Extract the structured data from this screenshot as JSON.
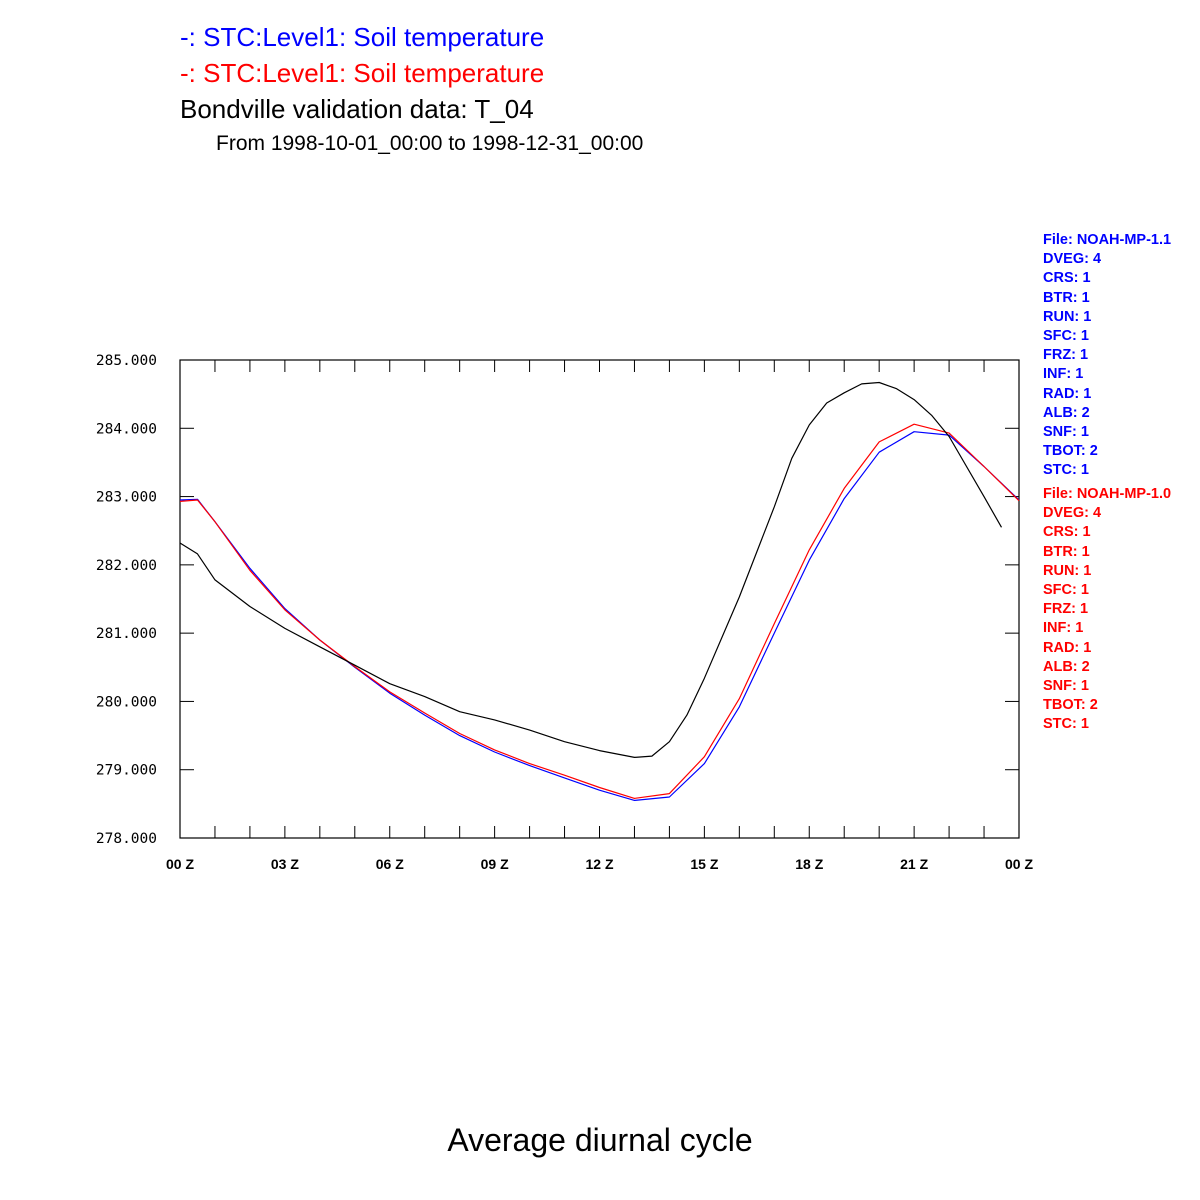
{
  "header": {
    "legend_blue": "-: STC:Level1: Soil temperature",
    "legend_red": "-: STC:Level1: Soil temperature",
    "title": "Bondville validation data: T_04",
    "subtitle": "From 1998-10-01_00:00 to 1998-12-31_00:00",
    "footer": "Average diurnal cycle"
  },
  "file_info": [
    {
      "color": "#0000ff",
      "lines": [
        "File: NOAH-MP-1.1",
        "DVEG: 4",
        "CRS: 1",
        "BTR: 1",
        "RUN: 1",
        "SFC: 1",
        "FRZ: 1",
        "INF: 1",
        "RAD: 1",
        "ALB: 2",
        "SNF: 1",
        "TBOT: 2",
        "STC: 1"
      ]
    },
    {
      "color": "#ff0000",
      "lines": [
        "File: NOAH-MP-1.0",
        "DVEG: 4",
        "CRS: 1",
        "BTR: 1",
        "RUN: 1",
        "SFC: 1",
        "FRZ: 1",
        "INF: 1",
        "RAD: 1",
        "ALB: 2",
        "SNF: 1",
        "TBOT: 2",
        "STC: 1"
      ]
    }
  ],
  "chart_data": {
    "type": "line",
    "title": "Bondville validation data: T_04",
    "xlabel": "Average diurnal cycle",
    "ylabel": "",
    "xlim": [
      0,
      24
    ],
    "ylim": [
      278,
      285
    ],
    "grid": false,
    "x_tick_labels": [
      "00 Z",
      "03 Z",
      "06 Z",
      "09 Z",
      "12 Z",
      "15 Z",
      "18 Z",
      "21 Z",
      "00 Z"
    ],
    "y_tick_labels": [
      "278.000",
      "279.000",
      "280.000",
      "281.000",
      "282.000",
      "283.000",
      "284.000",
      "285.000"
    ],
    "series": [
      {
        "color": "#0000ff",
        "x": [
          0,
          0.5,
          1,
          2,
          3,
          4,
          5,
          6,
          7,
          8,
          9,
          10,
          11,
          12,
          13,
          14,
          15,
          16,
          17,
          18,
          19,
          20,
          21,
          22,
          23,
          24
        ],
        "y": [
          282.95,
          282.96,
          282.63,
          281.95,
          281.36,
          280.9,
          280.5,
          280.12,
          279.8,
          279.5,
          279.26,
          279.06,
          278.88,
          278.7,
          278.55,
          278.6,
          279.09,
          279.92,
          281.0,
          282.07,
          282.97,
          283.65,
          283.95,
          283.9,
          283.44,
          282.95
        ]
      },
      {
        "color": "#ff0000",
        "x": [
          0,
          0.5,
          1,
          2,
          3,
          4,
          5,
          6,
          7,
          8,
          9,
          10,
          11,
          12,
          13,
          14,
          15,
          16,
          17,
          18,
          19,
          20,
          21,
          22,
          23,
          24
        ],
        "y": [
          282.93,
          282.95,
          282.63,
          281.92,
          281.34,
          280.9,
          280.51,
          280.14,
          279.83,
          279.53,
          279.29,
          279.09,
          278.92,
          278.74,
          278.58,
          278.65,
          279.19,
          280.04,
          281.14,
          282.22,
          283.12,
          283.8,
          284.06,
          283.93,
          283.44,
          282.94
        ]
      },
      {
        "color": "#000000",
        "x": [
          0,
          0.5,
          1,
          2,
          3,
          4,
          5,
          6,
          7,
          8,
          9,
          10,
          11,
          12,
          13,
          13.5,
          14,
          14.5,
          15,
          16,
          17,
          17.5,
          18,
          18.5,
          19,
          19.5,
          20,
          20.5,
          21,
          21.5,
          22,
          23,
          23.5
        ],
        "y": [
          282.32,
          282.16,
          281.78,
          281.39,
          281.07,
          280.8,
          280.53,
          280.26,
          280.07,
          279.85,
          279.73,
          279.58,
          279.41,
          279.28,
          279.18,
          279.2,
          279.41,
          279.8,
          280.34,
          281.53,
          282.85,
          283.56,
          284.05,
          284.37,
          284.52,
          284.65,
          284.67,
          284.58,
          284.42,
          284.19,
          283.88,
          283.0,
          282.55
        ]
      }
    ]
  }
}
